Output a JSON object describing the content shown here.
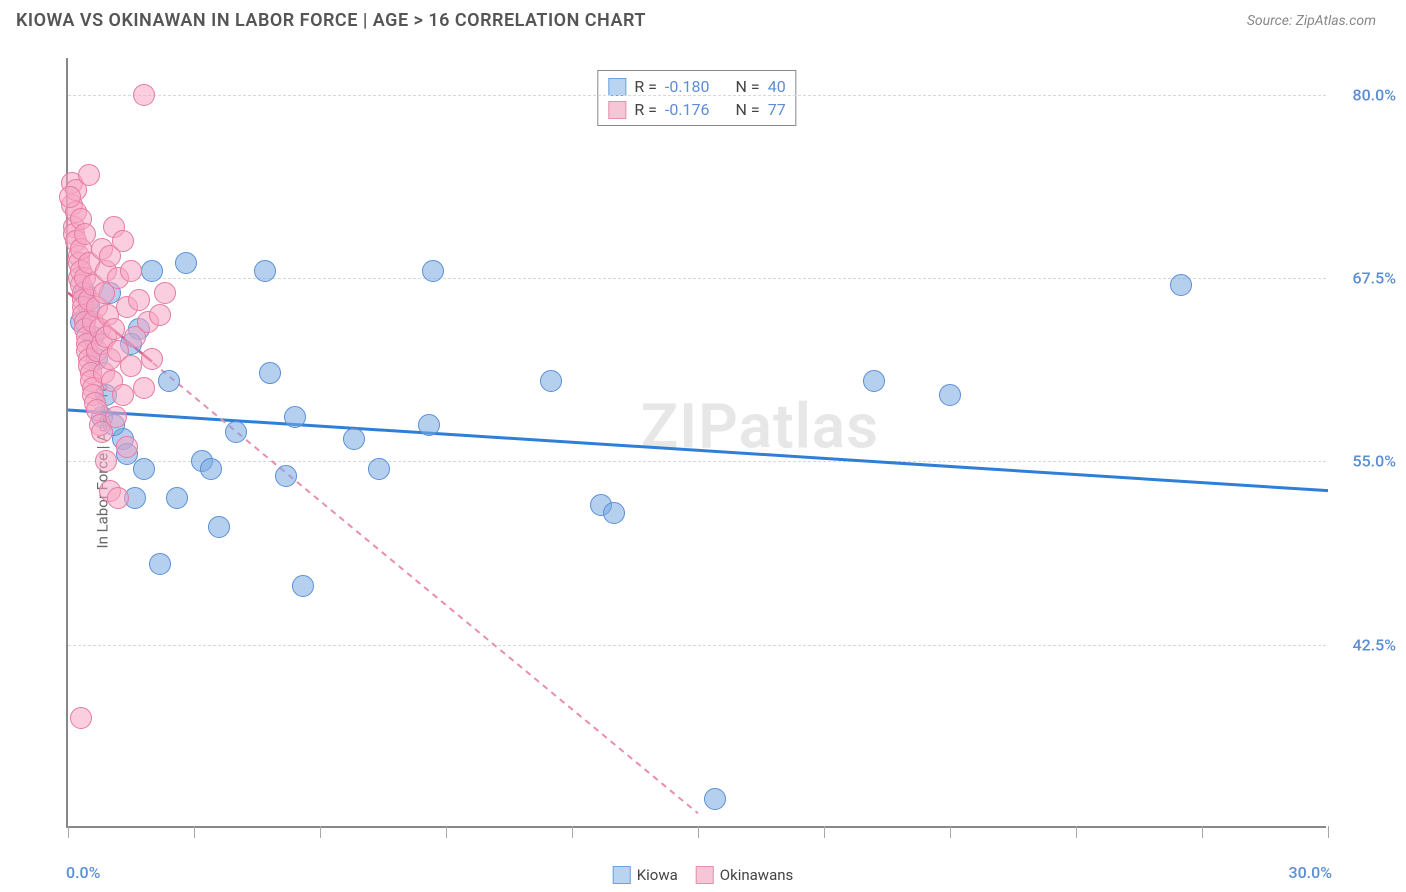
{
  "title": "KIOWA VS OKINAWAN IN LABOR FORCE | AGE > 16 CORRELATION CHART",
  "source": "Source: ZipAtlas.com",
  "watermark": "ZIPatlas",
  "chart": {
    "type": "scatter",
    "y_axis_title": "In Labor Force | Age > 16",
    "xlim": [
      0,
      30
    ],
    "ylim": [
      30,
      82.5
    ],
    "x_tick_start_label": "0.0%",
    "x_tick_end_label": "30.0%",
    "x_ticks": [
      0,
      3,
      6,
      9,
      12,
      15,
      18,
      21,
      24,
      27,
      30
    ],
    "y_gridlines": [
      42.5,
      55.0,
      67.5,
      80.0
    ],
    "y_tick_labels": [
      "42.5%",
      "55.0%",
      "67.5%",
      "80.0%"
    ],
    "background_color": "#ffffff",
    "grid_color": "#d8d8d8",
    "axis_color": "#888888",
    "tick_label_color": "#5a8fd6",
    "tick_label_fontsize": 16,
    "title_fontsize": 18,
    "title_color": "#555555",
    "stats_box": {
      "rows": [
        {
          "swatch_fill": "#b8d4f0",
          "swatch_border": "#6ca4e0",
          "r_label": "R =",
          "r_value": "-0.180",
          "n_label": "N =",
          "n_value": "40"
        },
        {
          "swatch_fill": "#f7c6d6",
          "swatch_border": "#e88fb0",
          "r_label": "R =",
          "r_value": "-0.176",
          "n_label": "N =",
          "n_value": "77"
        }
      ]
    },
    "legend": {
      "items": [
        {
          "swatch_fill": "#b8d4f0",
          "swatch_border": "#6ca4e0",
          "label": "Kiowa"
        },
        {
          "swatch_fill": "#f7c6d6",
          "swatch_border": "#e88fb0",
          "label": "Okinawans"
        }
      ]
    },
    "series": [
      {
        "name": "Kiowa",
        "marker_fill": "rgba(120,170,225,0.55)",
        "marker_border": "#5a8fd6",
        "marker_radius": 11,
        "trend": {
          "x1": 0,
          "y1": 58.5,
          "x2": 30,
          "y2": 53.0,
          "stroke": "#2f7ed8",
          "width": 3,
          "dash": "none"
        },
        "points": [
          [
            0.3,
            64.5
          ],
          [
            0.5,
            65.5
          ],
          [
            0.6,
            63.5
          ],
          [
            0.8,
            58.0
          ],
          [
            1.0,
            66.5
          ],
          [
            1.3,
            56.5
          ],
          [
            1.4,
            55.5
          ],
          [
            1.6,
            52.5
          ],
          [
            1.8,
            54.5
          ],
          [
            2.0,
            68.0
          ],
          [
            2.2,
            48.0
          ],
          [
            2.4,
            60.5
          ],
          [
            2.6,
            52.5
          ],
          [
            2.8,
            68.5
          ],
          [
            3.2,
            55.0
          ],
          [
            3.4,
            54.5
          ],
          [
            3.6,
            50.5
          ],
          [
            4.0,
            57.0
          ],
          [
            4.7,
            68.0
          ],
          [
            4.8,
            61.0
          ],
          [
            5.2,
            54.0
          ],
          [
            5.4,
            58.0
          ],
          [
            5.6,
            46.5
          ],
          [
            6.8,
            56.5
          ],
          [
            7.4,
            54.5
          ],
          [
            8.7,
            68.0
          ],
          [
            8.6,
            57.5
          ],
          [
            11.5,
            60.5
          ],
          [
            12.7,
            52.0
          ],
          [
            13.0,
            51.5
          ],
          [
            15.4,
            32.0
          ],
          [
            19.2,
            60.5
          ],
          [
            21.0,
            59.5
          ],
          [
            26.5,
            67.0
          ],
          [
            1.1,
            57.5
          ],
          [
            0.9,
            59.5
          ],
          [
            0.7,
            62.0
          ],
          [
            1.7,
            64.0
          ],
          [
            1.5,
            63.0
          ],
          [
            0.4,
            66.5
          ]
        ]
      },
      {
        "name": "Okinawans",
        "marker_fill": "rgba(245,165,195,0.55)",
        "marker_border": "#e57ba3",
        "marker_radius": 11,
        "trend": {
          "x1": 0,
          "y1": 66.5,
          "x2": 15,
          "y2": 31.0,
          "stroke": "#e88fb0",
          "width": 2,
          "dash": "6,5"
        },
        "solid_trend": {
          "x1": 0,
          "y1": 66.5,
          "x2": 2.0,
          "y2": 61.8,
          "stroke": "#e05a8a",
          "width": 2.5
        },
        "points": [
          [
            0.1,
            74.0
          ],
          [
            0.1,
            72.5
          ],
          [
            0.15,
            71.0
          ],
          [
            0.15,
            70.5
          ],
          [
            0.2,
            73.5
          ],
          [
            0.2,
            72.0
          ],
          [
            0.2,
            70.0
          ],
          [
            0.25,
            69.0
          ],
          [
            0.25,
            68.5
          ],
          [
            0.25,
            67.5
          ],
          [
            0.3,
            71.5
          ],
          [
            0.3,
            69.5
          ],
          [
            0.3,
            68.0
          ],
          [
            0.3,
            67.0
          ],
          [
            0.35,
            66.5
          ],
          [
            0.35,
            66.0
          ],
          [
            0.35,
            65.5
          ],
          [
            0.35,
            65.0
          ],
          [
            0.4,
            70.5
          ],
          [
            0.4,
            67.5
          ],
          [
            0.4,
            64.5
          ],
          [
            0.4,
            64.0
          ],
          [
            0.45,
            63.5
          ],
          [
            0.45,
            63.0
          ],
          [
            0.45,
            62.5
          ],
          [
            0.5,
            68.5
          ],
          [
            0.5,
            66.0
          ],
          [
            0.5,
            62.0
          ],
          [
            0.5,
            61.5
          ],
          [
            0.55,
            61.0
          ],
          [
            0.55,
            60.5
          ],
          [
            0.6,
            67.0
          ],
          [
            0.6,
            64.5
          ],
          [
            0.6,
            60.0
          ],
          [
            0.6,
            59.5
          ],
          [
            0.65,
            59.0
          ],
          [
            0.7,
            65.5
          ],
          [
            0.7,
            62.5
          ],
          [
            0.7,
            58.5
          ],
          [
            0.75,
            64.0
          ],
          [
            0.75,
            57.5
          ],
          [
            0.8,
            69.5
          ],
          [
            0.8,
            63.0
          ],
          [
            0.8,
            57.0
          ],
          [
            0.85,
            66.5
          ],
          [
            0.85,
            61.0
          ],
          [
            0.9,
            68.0
          ],
          [
            0.9,
            63.5
          ],
          [
            0.9,
            55.0
          ],
          [
            0.95,
            65.0
          ],
          [
            1.0,
            69.0
          ],
          [
            1.0,
            62.0
          ],
          [
            1.0,
            53.0
          ],
          [
            1.05,
            60.5
          ],
          [
            1.1,
            71.0
          ],
          [
            1.1,
            64.0
          ],
          [
            1.15,
            58.0
          ],
          [
            1.2,
            67.5
          ],
          [
            1.2,
            62.5
          ],
          [
            1.3,
            70.0
          ],
          [
            1.3,
            59.5
          ],
          [
            1.4,
            65.5
          ],
          [
            1.4,
            56.0
          ],
          [
            1.5,
            68.0
          ],
          [
            1.5,
            61.5
          ],
          [
            1.6,
            63.5
          ],
          [
            1.7,
            66.0
          ],
          [
            1.8,
            60.0
          ],
          [
            1.8,
            80.0
          ],
          [
            1.9,
            64.5
          ],
          [
            2.0,
            62.0
          ],
          [
            2.2,
            65.0
          ],
          [
            2.3,
            66.5
          ],
          [
            0.3,
            37.5
          ],
          [
            1.2,
            52.5
          ],
          [
            0.5,
            74.5
          ],
          [
            0.05,
            73.0
          ]
        ]
      }
    ]
  }
}
